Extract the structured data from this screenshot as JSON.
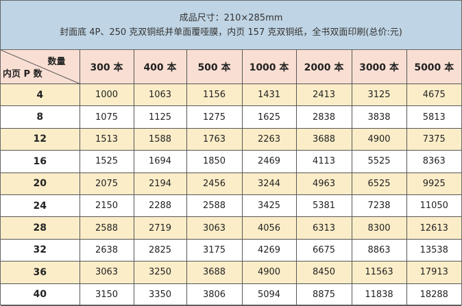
{
  "title": {
    "line1": "成品尺寸：210×285mm",
    "line2": "封面底 4P、250 克双铜纸并单面覆哑膜，内页 157 克双铜纸，全书双面印刷(总价:元)"
  },
  "table": {
    "corner_top": "数量",
    "corner_bottom": "内页 P 数",
    "columns": [
      "300 本",
      "400 本",
      "500 本",
      "1000 本",
      "2000 本",
      "3000 本",
      "5000 本"
    ],
    "rows": [
      {
        "p": "4",
        "values": [
          "1000",
          "1063",
          "1156",
          "1431",
          "2413",
          "3125",
          "4675"
        ]
      },
      {
        "p": "8",
        "values": [
          "1075",
          "1125",
          "1275",
          "1625",
          "2838",
          "3838",
          "5813"
        ]
      },
      {
        "p": "12",
        "values": [
          "1513",
          "1588",
          "1763",
          "2263",
          "3688",
          "4900",
          "7375"
        ]
      },
      {
        "p": "16",
        "values": [
          "1525",
          "1694",
          "1850",
          "2469",
          "4113",
          "5525",
          "8363"
        ]
      },
      {
        "p": "20",
        "values": [
          "2075",
          "2194",
          "2456",
          "3244",
          "4963",
          "6525",
          "9925"
        ]
      },
      {
        "p": "24",
        "values": [
          "2150",
          "2288",
          "2588",
          "3425",
          "5381",
          "7238",
          "11050"
        ]
      },
      {
        "p": "28",
        "values": [
          "2588",
          "2719",
          "3063",
          "4056",
          "6313",
          "8300",
          "12613"
        ]
      },
      {
        "p": "32",
        "values": [
          "2638",
          "2825",
          "3175",
          "4269",
          "6675",
          "8863",
          "13538"
        ]
      },
      {
        "p": "36",
        "values": [
          "3063",
          "3250",
          "3688",
          "4900",
          "8450",
          "11563",
          "17913"
        ]
      },
      {
        "p": "40",
        "values": [
          "3150",
          "3350",
          "3806",
          "5094",
          "8875",
          "11838",
          "18288"
        ]
      }
    ]
  },
  "colors": {
    "title_bg": "#bfd4e4",
    "header_bg": "#f9dfd3",
    "stripe_bg": "#fbedc8"
  }
}
